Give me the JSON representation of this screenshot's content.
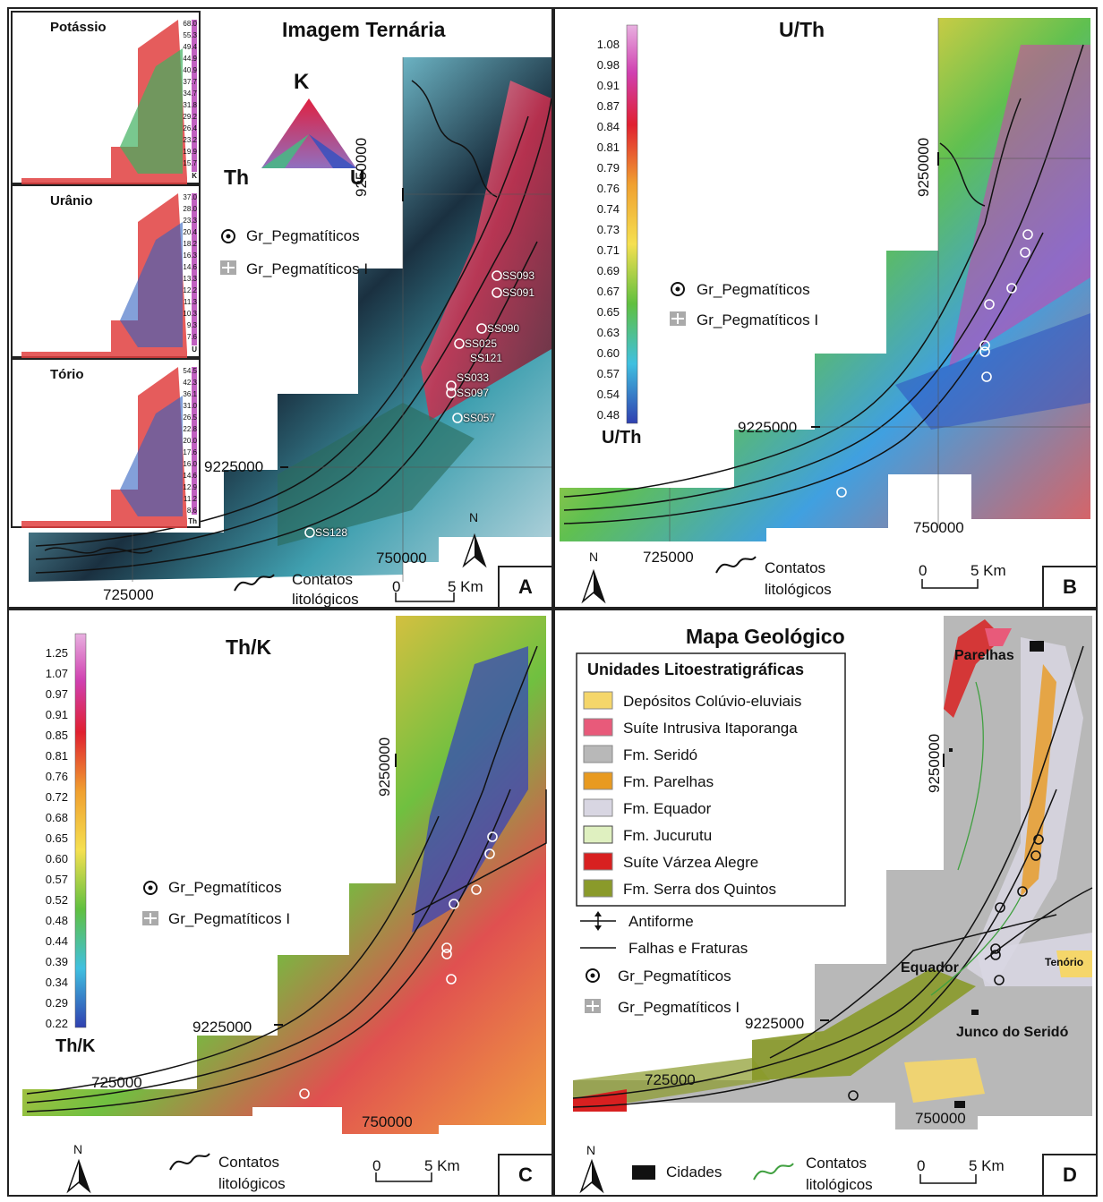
{
  "colors": {
    "cbar_top": "#d050c0",
    "cbar_red": "#e0303a",
    "cbar_yellow": "#f5e050",
    "cbar_green": "#60c040",
    "cbar_cyan": "#40c0e0",
    "cbar_blue": "#3040b0",
    "geo_colluvial": "#f5d66a",
    "geo_itaporanga": "#e85a7a",
    "geo_serido": "#b8b8b8",
    "geo_parelhas": "#e89a20",
    "geo_equador": "#d8d6e2",
    "geo_jucurutu": "#dff0c0",
    "geo_varzea": "#d82020",
    "geo_quintos": "#8a9a2a"
  },
  "panelA": {
    "title": "Imagem Ternária",
    "letter": "A",
    "triangle": {
      "k": "K",
      "th": "Th",
      "u": "U"
    },
    "legend": {
      "peg": "Gr_Pegmatíticos",
      "peg_i": "Gr_Pegmatíticos I"
    },
    "coords": {
      "n1": "9250000",
      "n2": "9225000",
      "e1": "750000",
      "e2": "725000"
    },
    "contacts": {
      "l1": "Contatos",
      "l2": "litológicos"
    },
    "scale": {
      "zero": "0",
      "five": "5 Km"
    },
    "north": "N",
    "samples": [
      "SS093",
      "SS091",
      "SS090",
      "SS025",
      "SS121",
      "SS033",
      "SS097",
      "SS057",
      "SS128"
    ],
    "insets": [
      {
        "name": "Potássio",
        "unit": "K",
        "ticks": [
          "68.0",
          "55.3",
          "49.4",
          "44.9",
          "40.9",
          "37.7",
          "34.7",
          "31.8",
          "29.2",
          "26.4",
          "23.2",
          "19.9",
          "15.7"
        ]
      },
      {
        "name": "Urânio",
        "unit": "U",
        "ticks": [
          "37.0",
          "28.0",
          "23.3",
          "20.4",
          "18.2",
          "16.3",
          "14.6",
          "13.3",
          "12.2",
          "11.3",
          "10.3",
          "9.3",
          "7.6"
        ]
      },
      {
        "name": "Tório",
        "unit": "Th",
        "ticks": [
          "54.5",
          "42.3",
          "36.1",
          "31.0",
          "26.5",
          "22.8",
          "20.0",
          "17.6",
          "16.0",
          "14.6",
          "12.9",
          "11.2",
          "8.6"
        ]
      }
    ]
  },
  "panelB": {
    "title": "U/Th",
    "letter": "B",
    "cbar_label": "U/Th",
    "ticks": [
      "1.08",
      "0.98",
      "0.91",
      "0.87",
      "0.84",
      "0.81",
      "0.79",
      "0.76",
      "0.74",
      "0.73",
      "0.71",
      "0.69",
      "0.67",
      "0.65",
      "0.63",
      "0.60",
      "0.57",
      "0.54",
      "0.48"
    ],
    "legend": {
      "peg": "Gr_Pegmatíticos",
      "peg_i": "Gr_Pegmatíticos I"
    },
    "coords": {
      "n1": "9250000",
      "n2": "9225000",
      "e1": "750000",
      "e2": "725000"
    },
    "contacts": {
      "l1": "Contatos",
      "l2": "litológicos"
    },
    "scale": {
      "zero": "0",
      "five": "5 Km"
    },
    "north": "N"
  },
  "panelC": {
    "title": "Th/K",
    "letter": "C",
    "cbar_label": "Th/K",
    "ticks": [
      "1.25",
      "1.07",
      "0.97",
      "0.91",
      "0.85",
      "0.81",
      "0.76",
      "0.72",
      "0.68",
      "0.65",
      "0.60",
      "0.57",
      "0.52",
      "0.48",
      "0.44",
      "0.39",
      "0.34",
      "0.29",
      "0.22"
    ],
    "legend": {
      "peg": "Gr_Pegmatíticos",
      "peg_i": "Gr_Pegmatíticos I"
    },
    "coords": {
      "n1": "9250000",
      "n2": "9225000",
      "e1": "750000",
      "e2": "725000"
    },
    "contacts": {
      "l1": "Contatos",
      "l2": "litológicos"
    },
    "scale": {
      "zero": "0",
      "five": "5 Km"
    },
    "north": "N"
  },
  "panelD": {
    "title": "Mapa Geológico",
    "letter": "D",
    "legend_title": "Unidades Litoestratigráficas",
    "units": [
      "Depósitos Colúvio-eluviais",
      "Suíte Intrusiva Itaporanga",
      "Fm. Seridó",
      "Fm. Parelhas",
      "Fm. Equador",
      "Fm. Jucurutu",
      "Suíte Várzea Alegre",
      "Fm. Serra dos Quintos"
    ],
    "antiform": "Antiforme",
    "faults": "Falhas e Fraturas",
    "peg": "Gr_Pegmatíticos",
    "peg_i": "Gr_Pegmatíticos I",
    "towns": {
      "parelhas": "Parelhas",
      "equador": "Equador",
      "tenorio": "Tenório",
      "junco": "Junco do Seridó"
    },
    "coords": {
      "n1": "9250000",
      "n2": "9225000",
      "e1": "750000",
      "e2": "725000"
    },
    "cities": "Cidades",
    "contacts": {
      "l1": "Contatos",
      "l2": "litológicos"
    },
    "scale": {
      "zero": "0",
      "five": "5 Km"
    },
    "north": "N"
  }
}
